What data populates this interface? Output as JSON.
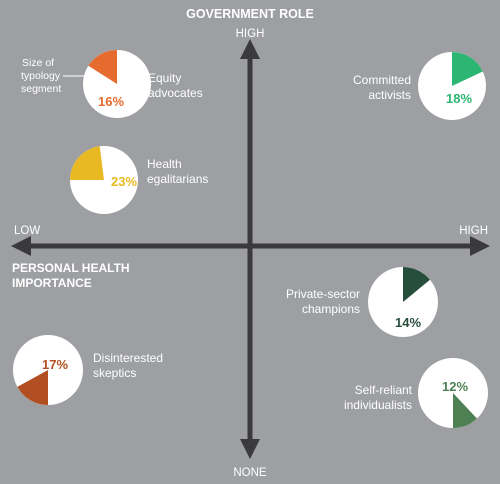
{
  "chart_data": {
    "type": "scatter",
    "title": "",
    "y_axis": {
      "title": "GOVERNMENT ROLE",
      "top_label": "HIGH",
      "bottom_label": "NONE"
    },
    "x_axis": {
      "title_lines": [
        "PERSONAL HEALTH",
        "IMPORTANCE"
      ],
      "left_label": "LOW",
      "right_label": "HIGH"
    },
    "legend_note": [
      "Size of",
      "typology",
      "segment"
    ],
    "segments": [
      {
        "name_lines": [
          "Equity",
          "advocates"
        ],
        "percent": 16,
        "percent_label": "16%",
        "color": "#e66b2e",
        "quadrant": "low-personal / high-government"
      },
      {
        "name_lines": [
          "Committed",
          "activists"
        ],
        "percent": 18,
        "percent_label": "18%",
        "color": "#2bb673",
        "quadrant": "high-personal / high-government"
      },
      {
        "name_lines": [
          "Health",
          "egalitarians"
        ],
        "percent": 23,
        "percent_label": "23%",
        "color": "#e8b923",
        "quadrant": "low-personal / high-government"
      },
      {
        "name_lines": [
          "Private-sector",
          "champions"
        ],
        "percent": 14,
        "percent_label": "14%",
        "color": "#274e3c",
        "quadrant": "high-personal / low-government"
      },
      {
        "name_lines": [
          "Disinterested",
          "skeptics"
        ],
        "percent": 17,
        "percent_label": "17%",
        "color": "#b24f22",
        "quadrant": "low-personal / low-government"
      },
      {
        "name_lines": [
          "Self-reliant",
          "individualists"
        ],
        "percent": 12,
        "percent_label": "12%",
        "color": "#4e8054",
        "quadrant": "high-personal / low-government"
      }
    ],
    "colors": {
      "background": "#9d9fa2",
      "axis": "#3a3a3c",
      "pie_base": "#ffffff",
      "label_text": "#ffffff"
    }
  }
}
